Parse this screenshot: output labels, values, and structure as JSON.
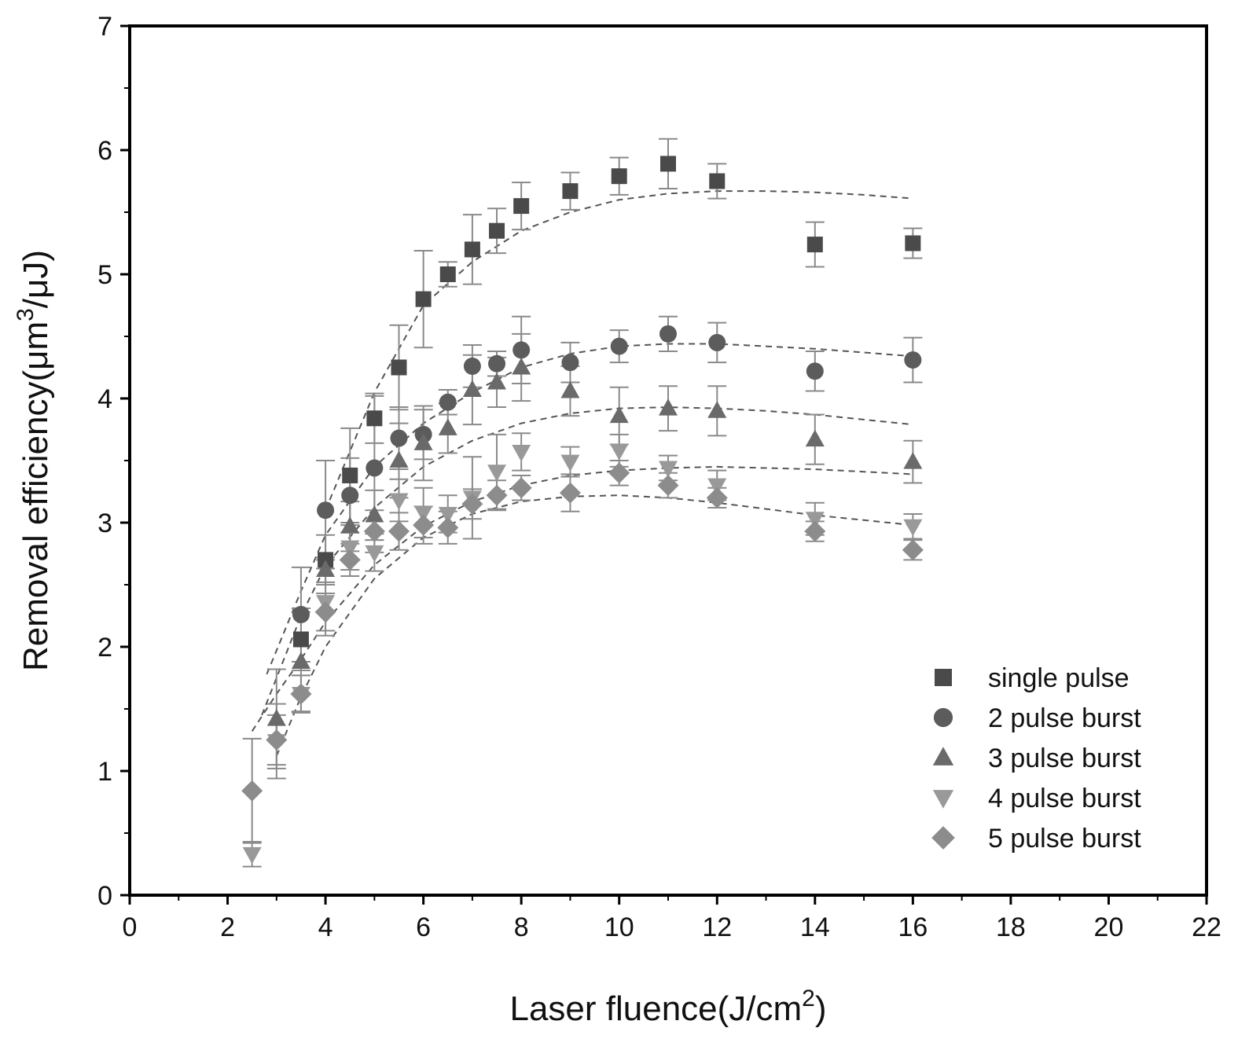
{
  "chart_data": {
    "type": "scatter",
    "title": "",
    "xlabel": {
      "main": "Laser fluence(J/cm",
      "sup": "2",
      "tail": ")"
    },
    "ylabel": {
      "main": "Removal efficiency(μm",
      "sup": "3",
      "tail": "/μJ)"
    },
    "xlim": [
      0,
      22
    ],
    "ylim": [
      0,
      7
    ],
    "xticks": [
      "0",
      "2",
      "4",
      "6",
      "8",
      "10",
      "12",
      "14",
      "16",
      "18",
      "20",
      "22"
    ],
    "yticks": [
      "0",
      "1",
      "2",
      "3",
      "4",
      "5",
      "6",
      "7"
    ],
    "grid": false,
    "legend_position": "bottom-right",
    "series": [
      {
        "name": "single pulse",
        "marker": "square",
        "color": "#4a4a4a",
        "points": [
          {
            "x": 3.5,
            "y": 2.06,
            "err": 0.25
          },
          {
            "x": 4.0,
            "y": 2.7,
            "err": 0.2
          },
          {
            "x": 4.5,
            "y": 3.38,
            "err": 0.38
          },
          {
            "x": 5.0,
            "y": 3.84,
            "err": 0.2
          },
          {
            "x": 5.5,
            "y": 4.25,
            "err": 0.34
          },
          {
            "x": 6.0,
            "y": 4.8,
            "err": 0.39
          },
          {
            "x": 6.5,
            "y": 5.0,
            "err": 0.1
          },
          {
            "x": 7.0,
            "y": 5.2,
            "err": 0.28
          },
          {
            "x": 7.5,
            "y": 5.35,
            "err": 0.18
          },
          {
            "x": 8.0,
            "y": 5.55,
            "err": 0.19
          },
          {
            "x": 9.0,
            "y": 5.67,
            "err": 0.15
          },
          {
            "x": 10.0,
            "y": 5.79,
            "err": 0.15
          },
          {
            "x": 11.0,
            "y": 5.89,
            "err": 0.2
          },
          {
            "x": 12.0,
            "y": 5.75,
            "err": 0.14
          },
          {
            "x": 14.0,
            "y": 5.24,
            "err": 0.18
          },
          {
            "x": 16.0,
            "y": 5.25,
            "err": 0.12
          }
        ],
        "fit": [
          [
            4.0,
            3.1
          ],
          [
            5.0,
            4.05
          ],
          [
            6.0,
            4.75
          ],
          [
            7.0,
            5.1
          ],
          [
            8.0,
            5.35
          ],
          [
            9.0,
            5.5
          ],
          [
            10.0,
            5.6
          ],
          [
            11.0,
            5.65
          ],
          [
            12.0,
            5.67
          ],
          [
            13.0,
            5.67
          ],
          [
            14.0,
            5.66
          ],
          [
            15.0,
            5.64
          ],
          [
            16.0,
            5.61
          ]
        ]
      },
      {
        "name": "2 pulse burst",
        "marker": "circle",
        "color": "#5c5c5c",
        "points": [
          {
            "x": 3.5,
            "y": 2.26,
            "err": 0.38
          },
          {
            "x": 4.0,
            "y": 3.1,
            "err": 0.4
          },
          {
            "x": 4.5,
            "y": 3.22,
            "err": 0.3
          },
          {
            "x": 5.0,
            "y": 3.44,
            "err": 0.58
          },
          {
            "x": 5.5,
            "y": 3.68,
            "err": 0.25
          },
          {
            "x": 6.0,
            "y": 3.71,
            "err": 0.2
          },
          {
            "x": 6.5,
            "y": 3.97,
            "err": 0.1
          },
          {
            "x": 7.0,
            "y": 4.26,
            "err": 0.17
          },
          {
            "x": 7.5,
            "y": 4.28,
            "err": 0.1
          },
          {
            "x": 8.0,
            "y": 4.39,
            "err": 0.27
          },
          {
            "x": 9.0,
            "y": 4.29,
            "err": 0.16
          },
          {
            "x": 10.0,
            "y": 4.42,
            "err": 0.13
          },
          {
            "x": 11.0,
            "y": 4.52,
            "err": 0.14
          },
          {
            "x": 12.0,
            "y": 4.45,
            "err": 0.16
          },
          {
            "x": 14.0,
            "y": 4.22,
            "err": 0.16
          },
          {
            "x": 16.0,
            "y": 4.31,
            "err": 0.18
          }
        ],
        "fit": [
          [
            2.8,
            1.78
          ],
          [
            3.5,
            2.45
          ],
          [
            4.0,
            2.9
          ],
          [
            5.0,
            3.45
          ],
          [
            6.0,
            3.8
          ],
          [
            7.0,
            4.05
          ],
          [
            8.0,
            4.25
          ],
          [
            9.0,
            4.36
          ],
          [
            10.0,
            4.42
          ],
          [
            11.0,
            4.44
          ],
          [
            12.0,
            4.44
          ],
          [
            13.0,
            4.42
          ],
          [
            14.0,
            4.4
          ],
          [
            15.0,
            4.37
          ],
          [
            16.0,
            4.34
          ]
        ]
      },
      {
        "name": "3 pulse burst",
        "marker": "triangle-up",
        "color": "#6a6a6a",
        "points": [
          {
            "x": 3.0,
            "y": 1.42,
            "err": 0.4
          },
          {
            "x": 3.5,
            "y": 1.88,
            "err": 0.4
          },
          {
            "x": 4.0,
            "y": 2.62,
            "err": 0.1
          },
          {
            "x": 4.5,
            "y": 2.97,
            "err": 0.2
          },
          {
            "x": 5.0,
            "y": 3.06,
            "err": 0.2
          },
          {
            "x": 5.5,
            "y": 3.5,
            "err": 0.3
          },
          {
            "x": 6.0,
            "y": 3.64,
            "err": 0.3
          },
          {
            "x": 6.5,
            "y": 3.76,
            "err": 0.2
          },
          {
            "x": 7.0,
            "y": 4.07,
            "err": 0.28
          },
          {
            "x": 7.5,
            "y": 4.13,
            "err": 0.2
          },
          {
            "x": 8.0,
            "y": 4.25,
            "err": 0.27
          },
          {
            "x": 9.0,
            "y": 4.06,
            "err": 0.2
          },
          {
            "x": 10.0,
            "y": 3.86,
            "err": 0.23
          },
          {
            "x": 11.0,
            "y": 3.92,
            "err": 0.18
          },
          {
            "x": 12.0,
            "y": 3.9,
            "err": 0.2
          },
          {
            "x": 14.0,
            "y": 3.67,
            "err": 0.2
          },
          {
            "x": 16.0,
            "y": 3.49,
            "err": 0.17
          }
        ],
        "fit": [
          [
            2.7,
            1.45
          ],
          [
            3.5,
            2.25
          ],
          [
            4.0,
            2.65
          ],
          [
            5.0,
            3.12
          ],
          [
            6.0,
            3.45
          ],
          [
            7.0,
            3.66
          ],
          [
            8.0,
            3.8
          ],
          [
            9.0,
            3.88
          ],
          [
            10.0,
            3.92
          ],
          [
            11.0,
            3.93
          ],
          [
            12.0,
            3.92
          ],
          [
            13.0,
            3.9
          ],
          [
            14.0,
            3.87
          ],
          [
            15.0,
            3.83
          ],
          [
            16.0,
            3.79
          ]
        ]
      },
      {
        "name": "4 pulse burst",
        "marker": "triangle-down",
        "color": "#999999",
        "points": [
          {
            "x": 2.5,
            "y": 0.33,
            "err": 0.1
          },
          {
            "x": 3.0,
            "y": 1.24,
            "err": 0.3
          },
          {
            "x": 3.5,
            "y": 1.62,
            "err": 0.15
          },
          {
            "x": 4.0,
            "y": 2.36,
            "err": 0.27
          },
          {
            "x": 4.5,
            "y": 2.8,
            "err": 0.18
          },
          {
            "x": 5.0,
            "y": 2.76,
            "err": 0.15
          },
          {
            "x": 5.5,
            "y": 3.18,
            "err": 0.17
          },
          {
            "x": 6.0,
            "y": 3.08,
            "err": 0.2
          },
          {
            "x": 6.5,
            "y": 3.07,
            "err": 0.15
          },
          {
            "x": 7.0,
            "y": 3.2,
            "err": 0.33
          },
          {
            "x": 7.5,
            "y": 3.41,
            "err": 0.3
          },
          {
            "x": 8.0,
            "y": 3.57,
            "err": 0.15
          },
          {
            "x": 9.0,
            "y": 3.49,
            "err": 0.12
          },
          {
            "x": 10.0,
            "y": 3.58,
            "err": 0.13
          },
          {
            "x": 11.0,
            "y": 3.44,
            "err": 0.1
          },
          {
            "x": 12.0,
            "y": 3.3,
            "err": 0.12
          },
          {
            "x": 14.0,
            "y": 3.03,
            "err": 0.13
          },
          {
            "x": 16.0,
            "y": 2.97,
            "err": 0.1
          }
        ],
        "fit": [
          [
            2.5,
            1.32
          ],
          [
            3.0,
            1.62
          ],
          [
            3.5,
            1.9
          ],
          [
            4.0,
            2.2
          ],
          [
            5.0,
            2.66
          ],
          [
            6.0,
            2.97
          ],
          [
            7.0,
            3.17
          ],
          [
            8.0,
            3.3
          ],
          [
            9.0,
            3.38
          ],
          [
            10.0,
            3.42
          ],
          [
            11.0,
            3.44
          ],
          [
            12.0,
            3.45
          ],
          [
            13.0,
            3.44
          ],
          [
            14.0,
            3.43
          ],
          [
            15.0,
            3.41
          ],
          [
            16.0,
            3.39
          ]
        ]
      },
      {
        "name": "5 pulse burst",
        "marker": "diamond",
        "color": "#8c8c8c",
        "points": [
          {
            "x": 2.5,
            "y": 0.84,
            "err": 0.42
          },
          {
            "x": 3.0,
            "y": 1.25,
            "err": 0.2
          },
          {
            "x": 3.5,
            "y": 1.62,
            "err": 0.15
          },
          {
            "x": 4.0,
            "y": 2.28,
            "err": 0.15
          },
          {
            "x": 4.5,
            "y": 2.7,
            "err": 0.13
          },
          {
            "x": 5.0,
            "y": 2.93,
            "err": 0.17
          },
          {
            "x": 5.5,
            "y": 2.93,
            "err": 0.15
          },
          {
            "x": 6.0,
            "y": 2.98,
            "err": 0.15
          },
          {
            "x": 6.5,
            "y": 2.96,
            "err": 0.13
          },
          {
            "x": 7.0,
            "y": 3.15,
            "err": 0.12
          },
          {
            "x": 7.5,
            "y": 3.22,
            "err": 0.12
          },
          {
            "x": 8.0,
            "y": 3.28,
            "err": 0.1
          },
          {
            "x": 9.0,
            "y": 3.24,
            "err": 0.15
          },
          {
            "x": 10.0,
            "y": 3.4,
            "err": 0.1
          },
          {
            "x": 11.0,
            "y": 3.3,
            "err": 0.1
          },
          {
            "x": 12.0,
            "y": 3.2,
            "err": 0.08
          },
          {
            "x": 14.0,
            "y": 2.93,
            "err": 0.08
          },
          {
            "x": 16.0,
            "y": 2.78,
            "err": 0.08
          }
        ],
        "fit": [
          [
            3.0,
            1.12
          ],
          [
            3.5,
            1.6
          ],
          [
            4.0,
            2.0
          ],
          [
            5.0,
            2.55
          ],
          [
            6.0,
            2.88
          ],
          [
            7.0,
            3.07
          ],
          [
            8.0,
            3.17
          ],
          [
            9.0,
            3.21
          ],
          [
            10.0,
            3.22
          ],
          [
            11.0,
            3.2
          ],
          [
            12.0,
            3.16
          ],
          [
            13.0,
            3.11
          ],
          [
            14.0,
            3.06
          ],
          [
            15.0,
            3.02
          ],
          [
            16.0,
            2.98
          ]
        ]
      }
    ]
  }
}
